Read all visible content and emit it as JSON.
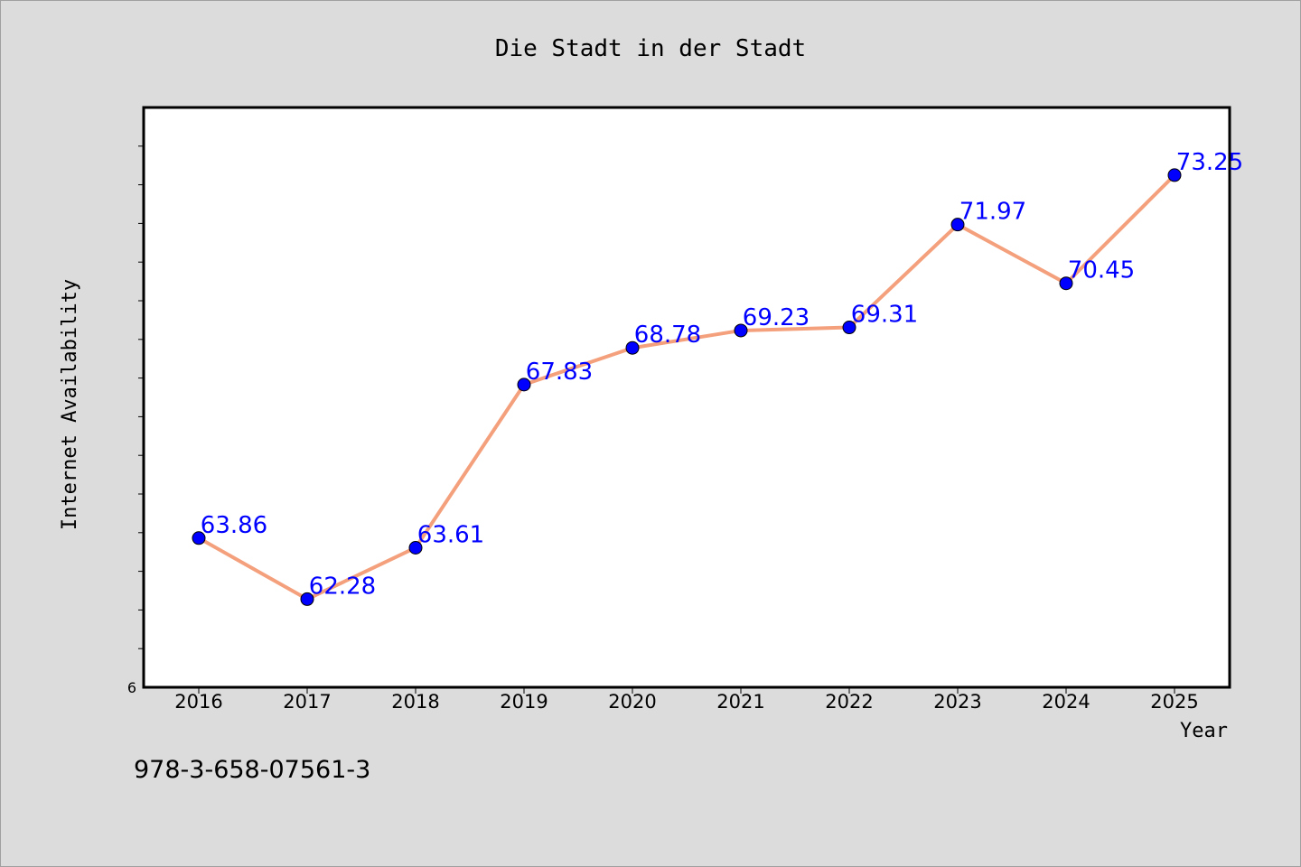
{
  "footer": {
    "code": "978-3-658-07561-3"
  },
  "colors": {
    "background": "#dcdcdc",
    "plot_background": "#ffffff",
    "line": "#f4a07c",
    "marker": "#0000ff",
    "label": "#0000ff"
  },
  "chart_data": {
    "type": "line",
    "title": "Die Stadt in der Stadt",
    "xlabel": "Year",
    "ylabel": "Internet Availability",
    "categories": [
      "2016",
      "2017",
      "2018",
      "2019",
      "2020",
      "2021",
      "2022",
      "2023",
      "2024",
      "2025"
    ],
    "series": [
      {
        "values": [
          63.86,
          62.28,
          63.61,
          67.83,
          68.78,
          69.23,
          69.31,
          71.97,
          70.45,
          73.25
        ]
      }
    ],
    "data_labels": [
      "63.86",
      "62.28",
      "63.61",
      "67.83",
      "68.78",
      "69.23",
      "69.31",
      "71.97",
      "70.45",
      "73.25"
    ],
    "ytick_labels": [
      "6"
    ],
    "ylim": [
      60,
      75
    ],
    "grid": false,
    "legend": "none"
  }
}
